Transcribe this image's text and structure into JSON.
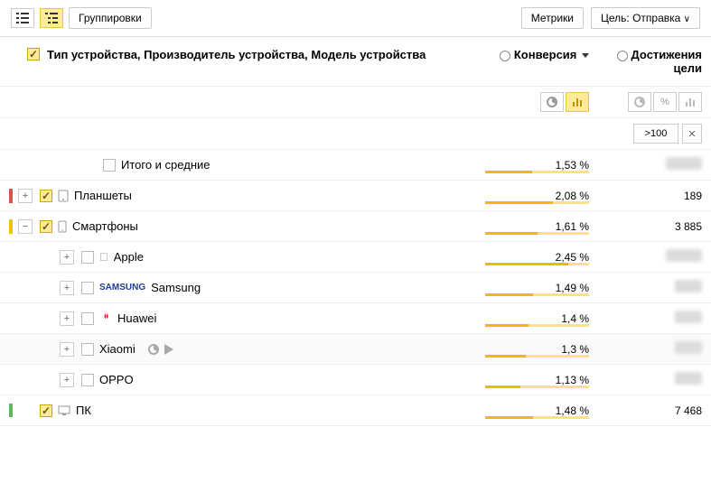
{
  "toolbar": {
    "groupings_label": "Группировки",
    "metrics_label": "Метрики",
    "goal_button": "Цель: Отправка"
  },
  "header": {
    "dimension_title": "Тип устройства, Производитель устройства, Модель устройства",
    "col_conversion": "Конверсия",
    "col_goal": "Достижения цели"
  },
  "filter": {
    "value": ">100"
  },
  "colors": {
    "row_side": [
      "",
      "#d9534f",
      "#f0c200",
      "",
      "",
      "",
      "",
      "",
      "#5cb85c"
    ],
    "spark": "#ffe08a",
    "spark_fill": "#f5b800"
  },
  "rows": [
    {
      "label": "Итого и средние",
      "indent": 64,
      "checked": false,
      "expandable": false,
      "icon": null,
      "sidecolor": "",
      "conv": "1,53 %",
      "conv_w": 45,
      "goal": null,
      "blur": true
    },
    {
      "label": "Планшеты",
      "indent": 0,
      "checked": true,
      "expandable": true,
      "expand_state": "+",
      "icon": "tablet",
      "sidecolor": "#d9534f",
      "conv": "2,08 %",
      "conv_w": 65,
      "goal": "189"
    },
    {
      "label": "Смартфоны",
      "indent": 0,
      "checked": true,
      "expandable": true,
      "expand_state": "−",
      "icon": "phone",
      "sidecolor": "#f0c200",
      "conv": "1,61 %",
      "conv_w": 50,
      "goal": "3 885"
    },
    {
      "label": "Apple",
      "indent": 40,
      "checked": false,
      "expandable": true,
      "expand_state": "+",
      "icon": "apple",
      "sidecolor": "",
      "conv": "2,45 %",
      "conv_w": 80,
      "goal": null,
      "blur": true
    },
    {
      "label": "Samsung",
      "indent": 40,
      "checked": false,
      "expandable": true,
      "expand_state": "+",
      "icon": "samsung",
      "sidecolor": "",
      "conv": "1,49 %",
      "conv_w": 46,
      "goal": null,
      "blur": true
    },
    {
      "label": "Huawei",
      "indent": 40,
      "checked": false,
      "expandable": true,
      "expand_state": "+",
      "icon": "huawei",
      "sidecolor": "",
      "conv": "1,4 %",
      "conv_w": 42,
      "goal": null,
      "blur": true
    },
    {
      "label": "Xiaomi",
      "indent": 40,
      "checked": false,
      "expandable": true,
      "expand_state": "+",
      "icon": null,
      "sidecolor": "",
      "conv": "1,3 %",
      "conv_w": 39,
      "goal": null,
      "blur": true,
      "hovered": true
    },
    {
      "label": "OPPO",
      "indent": 40,
      "checked": false,
      "expandable": true,
      "expand_state": "+",
      "icon": null,
      "sidecolor": "",
      "conv": "1,13 %",
      "conv_w": 34,
      "goal": null,
      "blur": true
    },
    {
      "label": "ПК",
      "indent": 0,
      "checked": true,
      "expandable": false,
      "icon": "desktop",
      "sidecolor": "#5cb85c",
      "conv": "1,48 %",
      "conv_w": 46,
      "goal": "7 468"
    }
  ]
}
